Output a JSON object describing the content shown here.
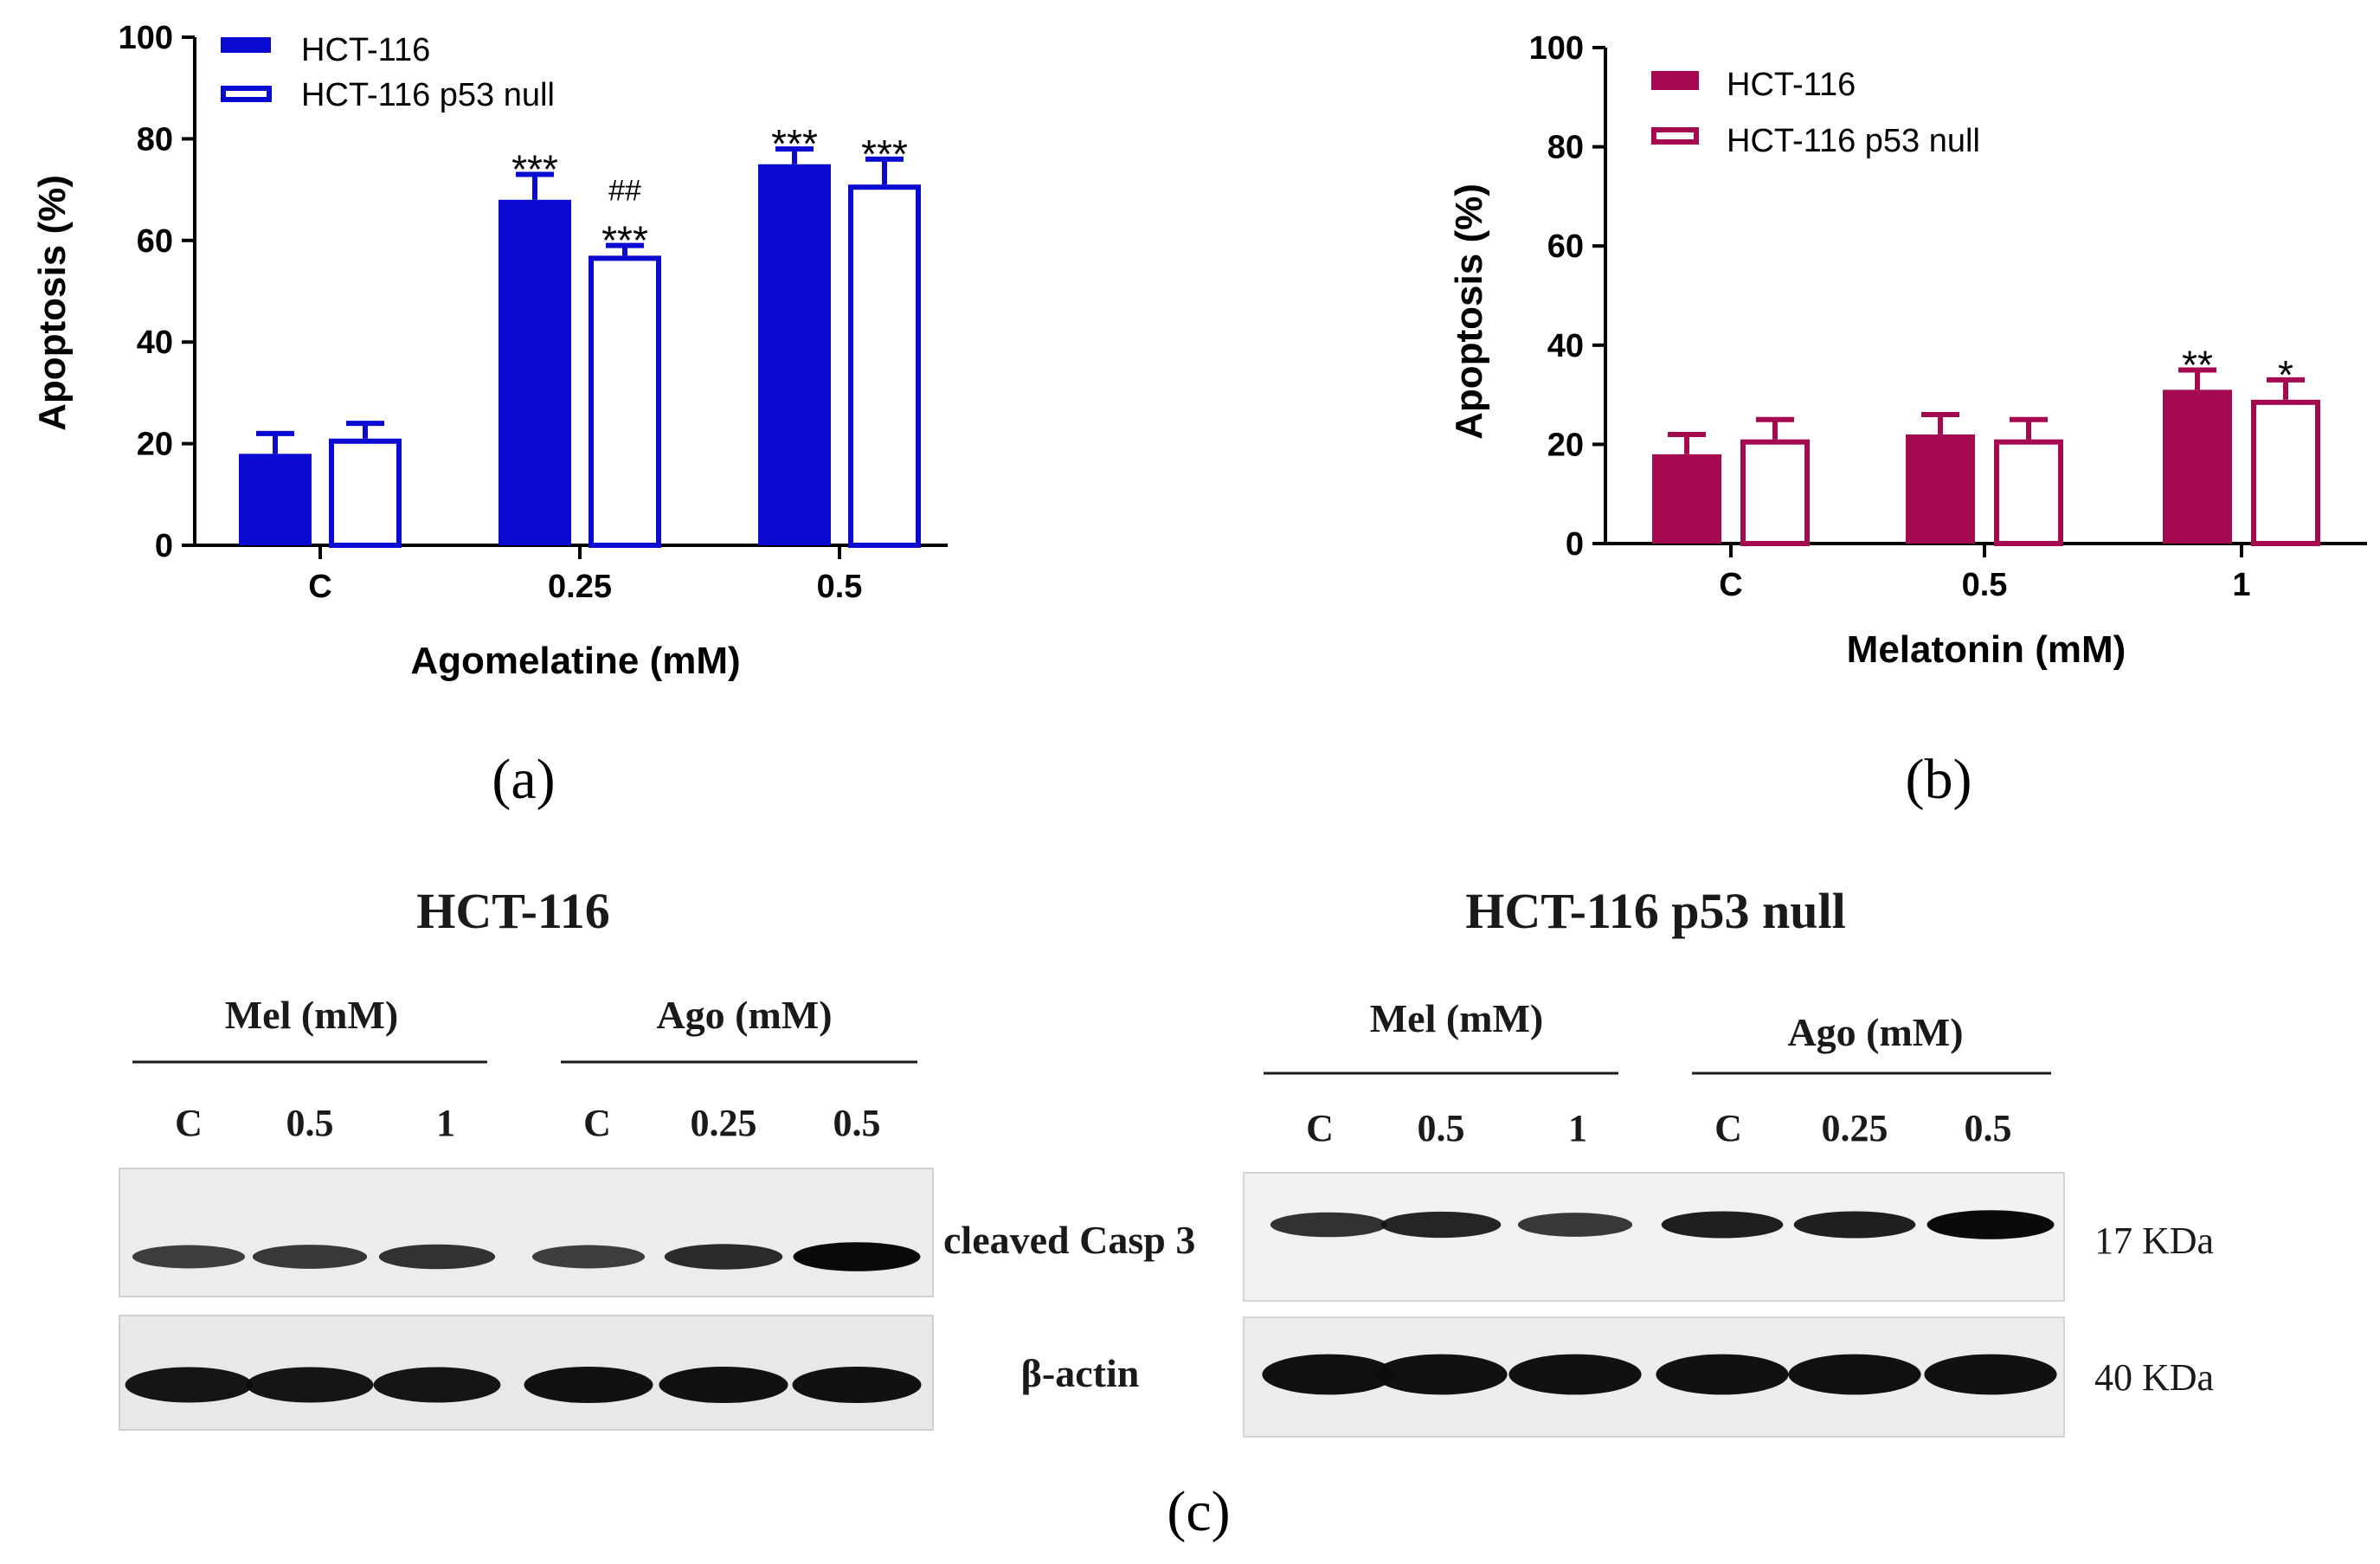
{
  "chart_data": [
    {
      "panel": "(a)",
      "type": "bar",
      "color": "#0a0ad2",
      "categories": [
        "C",
        "0.25",
        "0.5"
      ],
      "series": [
        {
          "name": "HCT-116",
          "fill": "solid",
          "values": [
            18,
            68,
            75
          ],
          "errors": [
            4,
            5,
            3
          ],
          "annotations": [
            "",
            "***",
            "***"
          ]
        },
        {
          "name": "HCT-116 p53 null",
          "fill": "open",
          "values": [
            21,
            57,
            71
          ],
          "errors": [
            3,
            2,
            5
          ],
          "annotations": [
            "",
            "##\n***",
            "***"
          ]
        }
      ],
      "xlabel": "Agomelatine (mM)",
      "ylabel": "Apoptosis (%)",
      "ylim": [
        0,
        100
      ],
      "yticks": [
        0,
        20,
        40,
        60,
        80,
        100
      ],
      "legend": "top-left"
    },
    {
      "panel": "(b)",
      "type": "bar",
      "color": "#a5094f",
      "categories": [
        "C",
        "0.5",
        "1"
      ],
      "series": [
        {
          "name": "HCT-116",
          "fill": "solid",
          "values": [
            18,
            22,
            31
          ],
          "errors": [
            4,
            4,
            4
          ],
          "annotations": [
            "",
            "",
            "**"
          ]
        },
        {
          "name": "HCT-116 p53 null",
          "fill": "open",
          "values": [
            21,
            21,
            29
          ],
          "errors": [
            4,
            4,
            4
          ],
          "annotations": [
            "",
            "",
            "*"
          ]
        }
      ],
      "xlabel": "Melatonin (mM)",
      "ylabel": "Apoptosis (%)",
      "ylim": [
        0,
        100
      ],
      "yticks": [
        0,
        20,
        40,
        60,
        80,
        100
      ],
      "legend": "top-left"
    }
  ],
  "panel_labels": {
    "a": "(a)",
    "b": "(b)",
    "c": "(c)"
  },
  "blots": {
    "left": {
      "title": "HCT-116",
      "group_mel": "Mel (mM)",
      "group_ago": "Ago (mM)",
      "lanes": [
        "C",
        "0.5",
        "1",
        "C",
        "0.25",
        "0.5"
      ],
      "casp3_intensity": [
        0.6,
        0.65,
        0.7,
        0.6,
        0.75,
        1.0
      ],
      "actin_intensity": [
        0.9,
        0.9,
        0.9,
        0.95,
        0.95,
        0.95
      ]
    },
    "right": {
      "title": "HCT-116 p53 null",
      "group_mel": "Mel (mM)",
      "group_ago": "Ago (mM)",
      "lanes": [
        "C",
        "0.5",
        "1",
        "C",
        "0.25",
        "0.5"
      ],
      "casp3_intensity": [
        0.7,
        0.8,
        0.65,
        0.85,
        0.85,
        1.0
      ],
      "actin_intensity": [
        0.95,
        0.95,
        0.95,
        0.95,
        0.95,
        0.95
      ]
    },
    "protein_casp3": "cleaved Casp 3",
    "protein_actin": "β-actin",
    "kda_casp3": "17 KDa",
    "kda_actin": "40 KDa"
  }
}
